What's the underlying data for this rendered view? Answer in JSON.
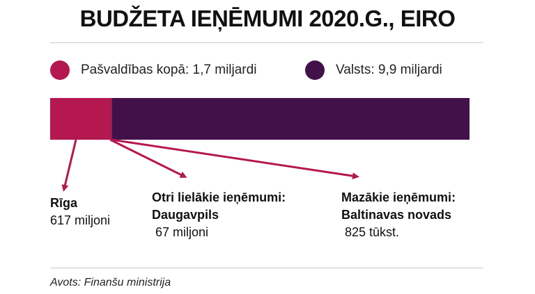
{
  "chart_data": {
    "type": "bar",
    "orientation": "horizontal-stacked",
    "title": "BUDŽETA IEŅĒMUMI 2020.G., EIRO",
    "series": [
      {
        "name": "Pašvaldības kopā: 1,7 miljardi",
        "value": 1.7,
        "color": "#b5174f"
      },
      {
        "name": "Valsts: 9,9 miljardi",
        "value": 9.9,
        "color": "#43114a"
      }
    ],
    "annotations": [
      {
        "heading": "Rīga",
        "subheading": "",
        "value": "617 miljoni"
      },
      {
        "heading": "Otri lielākie ieņēmumi:",
        "subheading": "Daugavpils",
        "value": " 67 miljoni"
      },
      {
        "heading": "Mazākie ieņēmumi:",
        "subheading": "Baltinavas novads",
        "value": " 825 tūkst."
      }
    ],
    "arrow_color": "#b5174f",
    "source": "Avots: Finanšu ministrija"
  }
}
